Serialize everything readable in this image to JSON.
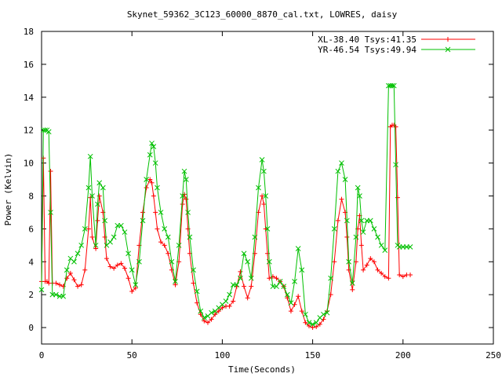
{
  "chart_data": {
    "type": "line",
    "title": "Skynet_59362_3C123_60000_8870_cal.txt, LOWRES, daisy",
    "xlabel": "Time(Seconds)",
    "ylabel": "Power (Kelvin)",
    "xlim": [
      0,
      250
    ],
    "ylim": [
      -1,
      18
    ],
    "xticks": [
      0,
      50,
      100,
      150,
      200,
      250
    ],
    "yticks": [
      0,
      2,
      4,
      6,
      8,
      10,
      12,
      14,
      16,
      18
    ],
    "grid": false,
    "legend_position": "top-right",
    "series": [
      {
        "name": "XL-38.40 Tsys:41.35",
        "color": "#ff0000",
        "marker": "plus",
        "x": [
          0,
          1,
          2,
          3,
          4,
          5,
          6,
          8,
          10,
          12,
          14,
          16,
          18,
          20,
          22,
          24,
          26,
          27,
          28,
          30,
          31,
          32,
          34,
          35,
          36,
          38,
          40,
          42,
          44,
          46,
          48,
          50,
          52,
          54,
          56,
          58,
          60,
          61,
          62,
          63,
          64,
          66,
          68,
          70,
          72,
          74,
          76,
          78,
          79,
          80,
          81,
          82,
          84,
          86,
          88,
          90,
          92,
          94,
          96,
          98,
          100,
          102,
          104,
          106,
          108,
          110,
          112,
          114,
          116,
          118,
          120,
          122,
          123,
          124,
          125,
          126,
          128,
          130,
          132,
          134,
          136,
          138,
          140,
          142,
          144,
          146,
          148,
          150,
          152,
          154,
          156,
          158,
          160,
          162,
          164,
          166,
          168,
          169,
          170,
          172,
          174,
          175,
          176,
          177,
          178,
          180,
          182,
          184,
          186,
          188,
          190,
          192,
          193,
          194,
          195,
          196,
          197,
          198,
          200,
          202,
          204
        ],
        "y": [
          2.8,
          10.3,
          2.8,
          2.8,
          2.7,
          9.5,
          2.7,
          2.7,
          2.6,
          2.5,
          3.0,
          3.3,
          2.9,
          2.5,
          2.6,
          3.5,
          6.0,
          7.9,
          5.5,
          4.8,
          6.5,
          8.0,
          7.0,
          5.5,
          4.2,
          3.7,
          3.6,
          3.8,
          3.9,
          3.6,
          3.0,
          2.2,
          2.4,
          5.0,
          7.0,
          8.5,
          9.0,
          8.8,
          8.0,
          7.0,
          6.0,
          5.2,
          5.0,
          4.5,
          3.5,
          2.6,
          4.0,
          7.5,
          8.1,
          7.8,
          6.0,
          4.5,
          2.7,
          1.5,
          0.8,
          0.4,
          0.3,
          0.5,
          0.8,
          1.0,
          1.2,
          1.3,
          1.3,
          1.6,
          2.5,
          3.4,
          2.5,
          1.8,
          2.5,
          4.5,
          7.0,
          8.0,
          7.5,
          6.0,
          4.5,
          3.0,
          3.1,
          3.0,
          2.8,
          2.5,
          1.8,
          1.0,
          1.4,
          1.9,
          1.0,
          0.3,
          0.1,
          0.0,
          0.05,
          0.2,
          0.5,
          1.0,
          2.0,
          4.0,
          6.5,
          7.8,
          7.0,
          5.5,
          3.5,
          2.3,
          4.0,
          6.0,
          6.8,
          5.0,
          3.5,
          3.8,
          4.2,
          4.0,
          3.5,
          3.3,
          3.1,
          3.0,
          12.2,
          12.3,
          12.3,
          12.2,
          7.9,
          3.2,
          3.1,
          3.2,
          3.2
        ]
      },
      {
        "name": "YR-46.54 Tsys:49.94",
        "color": "#00c000",
        "marker": "cross",
        "x": [
          0,
          1,
          2,
          3,
          4,
          5,
          6,
          8,
          10,
          12,
          14,
          16,
          18,
          20,
          22,
          24,
          26,
          27,
          28,
          30,
          31,
          32,
          34,
          35,
          36,
          38,
          40,
          42,
          44,
          46,
          48,
          50,
          52,
          54,
          56,
          58,
          60,
          61,
          62,
          63,
          64,
          66,
          68,
          70,
          72,
          74,
          76,
          78,
          79,
          80,
          81,
          82,
          84,
          86,
          88,
          90,
          92,
          94,
          96,
          98,
          100,
          102,
          104,
          106,
          108,
          110,
          112,
          114,
          116,
          118,
          120,
          122,
          123,
          124,
          125,
          126,
          128,
          130,
          132,
          134,
          136,
          138,
          140,
          142,
          144,
          146,
          148,
          150,
          152,
          154,
          156,
          158,
          160,
          162,
          164,
          166,
          168,
          169,
          170,
          172,
          174,
          175,
          176,
          177,
          178,
          180,
          182,
          184,
          186,
          188,
          190,
          192,
          193,
          194,
          195,
          196,
          197,
          198,
          200,
          202,
          204
        ],
        "y": [
          2.3,
          12.0,
          12.0,
          12.0,
          11.9,
          7.0,
          2.0,
          2.0,
          1.9,
          1.9,
          3.5,
          4.2,
          4.0,
          4.5,
          5.0,
          6.0,
          8.5,
          10.4,
          8.0,
          5.0,
          7.5,
          8.8,
          8.5,
          6.5,
          5.0,
          5.2,
          5.5,
          6.2,
          6.2,
          5.8,
          4.5,
          3.5,
          2.6,
          4.0,
          6.5,
          9.0,
          10.5,
          11.2,
          11.0,
          10.0,
          8.5,
          7.0,
          6.0,
          5.5,
          4.0,
          2.8,
          5.0,
          8.0,
          9.5,
          9.0,
          7.0,
          5.5,
          3.5,
          2.2,
          1.0,
          0.6,
          0.7,
          0.9,
          1.0,
          1.2,
          1.4,
          1.6,
          2.0,
          2.6,
          2.6,
          3.0,
          4.5,
          4.0,
          3.0,
          5.5,
          8.5,
          10.2,
          9.5,
          8.0,
          6.0,
          4.0,
          2.5,
          2.5,
          2.8,
          2.5,
          2.0,
          1.5,
          2.8,
          4.8,
          3.5,
          0.8,
          0.3,
          0.2,
          0.3,
          0.6,
          0.8,
          0.9,
          3.0,
          6.0,
          9.5,
          10.0,
          9.0,
          6.5,
          4.0,
          2.7,
          5.5,
          8.5,
          8.0,
          6.5,
          5.8,
          6.5,
          6.5,
          6.0,
          5.5,
          5.0,
          4.7,
          14.7,
          14.7,
          14.7,
          14.7,
          9.9,
          5.0,
          4.9,
          4.9,
          4.9,
          4.9
        ]
      }
    ]
  }
}
